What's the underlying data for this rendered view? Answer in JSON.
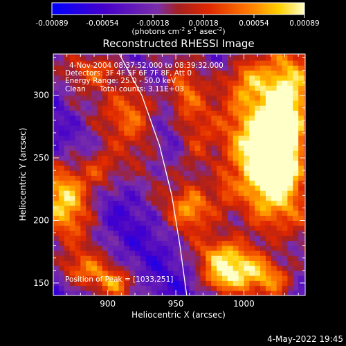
{
  "chart_data": {
    "type": "heatmap",
    "title": "Reconstructed RHESSI Image",
    "xlabel": "Heliocentric X (arcsec)",
    "ylabel": "Heliocentric Y (arcsec)",
    "xlim": [
      860,
      1045
    ],
    "ylim": [
      140,
      333
    ],
    "x_ticks": [
      900,
      950,
      1000
    ],
    "y_ticks": [
      150,
      200,
      250,
      300
    ],
    "colorbar": {
      "range": [
        -0.00089,
        0.00089
      ],
      "ticks": [
        "-0.00089",
        "-0.00054",
        "-0.00018",
        "0.00018",
        "0.00054",
        "0.00089"
      ],
      "unit_label_parts": [
        "(photons cm",
        "-2",
        " s",
        "-1",
        " asec",
        "-2",
        ")"
      ],
      "colors": [
        "#0000ff",
        "#4400cc",
        "#7b2ea8",
        "#a52020",
        "#e02800",
        "#ff7a00",
        "#ffd000",
        "#ffffc8"
      ]
    },
    "annotations": {
      "time": "4-Nov-2004 08:37:52.000 to 08:39:32.000",
      "detectors": "Detectors: 3F 4F 5F 6F 7F 8F, Att 0",
      "energy": "Energy Range: 25.0 - 50.0 keV",
      "clean": "Clean",
      "total_counts": "Total counts: 3.11E+03",
      "peak": "Position of Peak = [1033,251]"
    },
    "peak_position": [
      1033,
      251
    ],
    "limb_points": [
      [
        908,
        334
      ],
      [
        925,
        300
      ],
      [
        938,
        260
      ],
      [
        947,
        220
      ],
      [
        953,
        180
      ],
      [
        958,
        140
      ]
    ],
    "blobs": [
      {
        "x": 1015,
        "y": 245,
        "sx": 20,
        "sy": 45,
        "amp": 1.0
      },
      {
        "x": 1030,
        "y": 260,
        "sx": 10,
        "sy": 20,
        "amp": 0.7
      },
      {
        "x": 1030,
        "y": 300,
        "sx": 14,
        "sy": 24,
        "amp": 0.8
      },
      {
        "x": 1002,
        "y": 315,
        "sx": 10,
        "sy": 14,
        "amp": 0.55
      },
      {
        "x": 870,
        "y": 220,
        "sx": 14,
        "sy": 22,
        "amp": 0.8
      },
      {
        "x": 895,
        "y": 240,
        "sx": 10,
        "sy": 12,
        "amp": 0.45
      },
      {
        "x": 920,
        "y": 290,
        "sx": 14,
        "sy": 20,
        "amp": 0.6
      },
      {
        "x": 895,
        "y": 322,
        "sx": 14,
        "sy": 10,
        "amp": 0.5
      },
      {
        "x": 965,
        "y": 260,
        "sx": 10,
        "sy": 24,
        "amp": 0.5
      },
      {
        "x": 962,
        "y": 210,
        "sx": 12,
        "sy": 12,
        "amp": 0.55
      },
      {
        "x": 985,
        "y": 172,
        "sx": 14,
        "sy": 10,
        "amp": 0.5
      },
      {
        "x": 1005,
        "y": 160,
        "sx": 16,
        "sy": 10,
        "amp": 0.55
      },
      {
        "x": 1025,
        "y": 150,
        "sx": 12,
        "sy": 10,
        "amp": 0.45
      },
      {
        "x": 982,
        "y": 152,
        "sx": 10,
        "sy": 8,
        "amp": 0.45
      },
      {
        "x": 880,
        "y": 160,
        "sx": 14,
        "sy": 10,
        "amp": 0.5
      },
      {
        "x": 905,
        "y": 150,
        "sx": 10,
        "sy": 8,
        "amp": 0.45
      },
      {
        "x": 955,
        "y": 300,
        "sx": 8,
        "sy": 16,
        "amp": 0.45
      },
      {
        "x": 985,
        "y": 225,
        "sx": 6,
        "sy": 12,
        "amp": 0.35
      }
    ]
  },
  "footer": {
    "timestamp": "4-May-2022 19:45"
  }
}
